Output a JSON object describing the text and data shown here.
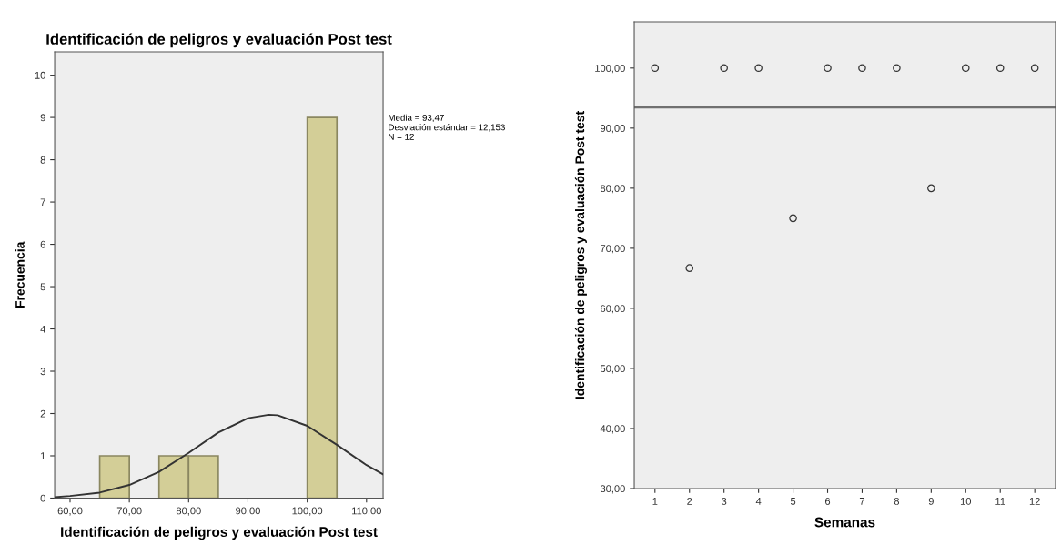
{
  "chart_data": [
    {
      "type": "histogram",
      "title": "Identificación de peligros y evaluación Post test",
      "xlabel": "Identificación de peligros y evaluación Post test",
      "ylabel": "Frecuencia",
      "bins": [
        65,
        70,
        75,
        80,
        85,
        90,
        95,
        100,
        105
      ],
      "values": [
        1,
        0,
        1,
        1,
        0,
        0,
        0,
        9
      ],
      "color": "#d3ce97",
      "series": [
        {
          "type": "line",
          "color": "#333333",
          "x": [
            57.4,
            60,
            65,
            70,
            75,
            80,
            85,
            90,
            93.5,
            95,
            100,
            105,
            110,
            112.8
          ],
          "values": [
            0.02,
            0.05,
            0.13,
            0.31,
            0.62,
            1.07,
            1.55,
            1.89,
            1.97,
            1.96,
            1.71,
            1.26,
            0.78,
            0.56
          ]
        }
      ],
      "xlim": [
        57.4,
        112.8
      ],
      "xticks": [
        {
          "value": 60,
          "label": "60,00"
        },
        {
          "value": 70,
          "label": "70,00"
        },
        {
          "value": 80,
          "label": "80,00"
        },
        {
          "value": 90,
          "label": "90,00"
        },
        {
          "value": 100,
          "label": "100,00"
        },
        {
          "value": 110,
          "label": "110,00"
        }
      ],
      "ylim": [
        0,
        10.55
      ],
      "yticks": [
        0,
        1,
        2,
        3,
        4,
        5,
        6,
        7,
        8,
        9,
        10
      ],
      "annotations": [
        "Media = 93,47\nDesviación estándar = 12,153\nN = 12"
      ],
      "grid": false
    },
    {
      "type": "scatter",
      "xlabel": "Semanas",
      "ylabel": "Identificación de peligros y evaluación Post test",
      "x": [
        1,
        2,
        3,
        4,
        5,
        6,
        7,
        8,
        9,
        10,
        11,
        12
      ],
      "values": [
        100,
        66.7,
        100,
        100,
        75,
        100,
        100,
        100,
        80,
        100,
        100,
        100
      ],
      "color": "#333333",
      "marker": "circle",
      "xlim": [
        0.4,
        12.6
      ],
      "xticks": [
        1,
        2,
        3,
        4,
        5,
        6,
        7,
        8,
        9,
        10,
        11,
        12
      ],
      "ylim": [
        30,
        107.7
      ],
      "yticks": [
        {
          "value": 30,
          "label": "30,00"
        },
        {
          "value": 40,
          "label": "40,00"
        },
        {
          "value": 50,
          "label": "50,00"
        },
        {
          "value": 60,
          "label": "60,00"
        },
        {
          "value": 70,
          "label": "70,00"
        },
        {
          "value": 80,
          "label": "80,00"
        },
        {
          "value": 90,
          "label": "90,00"
        },
        {
          "value": 100,
          "label": "100,00"
        }
      ],
      "ref_lines": [
        {
          "axis": "y",
          "value": 93.47,
          "color": "#707070"
        }
      ],
      "grid": false
    }
  ]
}
